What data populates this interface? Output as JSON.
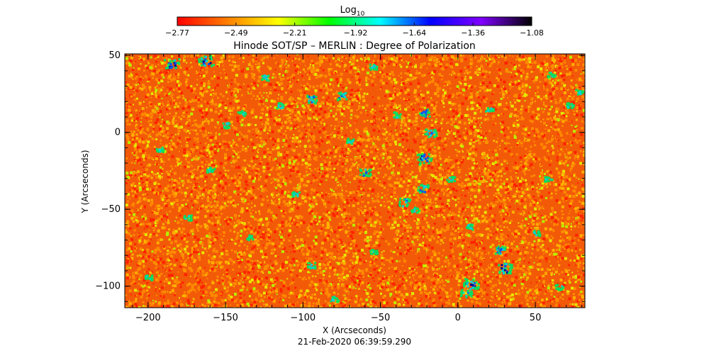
{
  "chart_data": {
    "type": "heatmap",
    "title": "Hinode SOT/SP – MERLIN : Degree of Polarization",
    "xlabel": "X (Arcseconds)",
    "ylabel": "Y (Arcseconds)",
    "timestamp": "21-Feb-2020 06:39:59.290",
    "xlim": [
      -215,
      82
    ],
    "ylim": [
      -114,
      51
    ],
    "x_ticks": [
      -200,
      -150,
      -100,
      -50,
      0,
      50
    ],
    "x_tick_labels": [
      "−200",
      "−150",
      "−100",
      "−50",
      "0",
      "50"
    ],
    "y_ticks": [
      50,
      0,
      -50,
      -100
    ],
    "y_tick_labels": [
      "50",
      "0",
      "−50",
      "−100"
    ],
    "colorbar": {
      "label_base": "Log",
      "label_sub": "10",
      "range": [
        -2.77,
        -1.08
      ],
      "ticks": [
        -2.77,
        -2.49,
        -2.21,
        -1.92,
        -1.64,
        -1.36,
        -1.08
      ],
      "tick_labels": [
        "−2.77",
        "−2.49",
        "−2.21",
        "−1.92",
        "−1.64",
        "−1.36",
        "−1.08"
      ],
      "colormap": [
        "#ff0000",
        "#ff8000",
        "#ffff00",
        "#00ff00",
        "#00ffff",
        "#0000ff",
        "#8000ff",
        "#000000"
      ]
    },
    "field": {
      "typical_value": -2.62,
      "background_color": "#f25a08",
      "speckle_colors": [
        "#ff2200",
        "#ff8a00",
        "#ffb000",
        "#e8e800",
        "#b8f000"
      ],
      "speckle_weights": [
        0.22,
        0.4,
        0.23,
        0.1,
        0.05
      ],
      "strong_colors": [
        "#00e060",
        "#00d0e0",
        "#0050ff",
        "#000090"
      ],
      "strong_patches": [
        {
          "x": -185,
          "y": 45,
          "level": 3
        },
        {
          "x": -163,
          "y": 47,
          "level": 3
        },
        {
          "x": -95,
          "y": 22,
          "level": 2
        },
        {
          "x": -75,
          "y": 24,
          "level": 2
        },
        {
          "x": -40,
          "y": 12,
          "level": 1
        },
        {
          "x": -22,
          "y": 13,
          "level": 2
        },
        {
          "x": -18,
          "y": 0,
          "level": 2
        },
        {
          "x": -22,
          "y": -17,
          "level": 3
        },
        {
          "x": -160,
          "y": -24,
          "level": 1
        },
        {
          "x": -193,
          "y": -11,
          "level": 1
        },
        {
          "x": -60,
          "y": -26,
          "level": 2
        },
        {
          "x": -35,
          "y": -45,
          "level": 2
        },
        {
          "x": -23,
          "y": -36,
          "level": 2
        },
        {
          "x": -28,
          "y": -50,
          "level": 1
        },
        {
          "x": 7,
          "y": -61,
          "level": 1
        },
        {
          "x": 27,
          "y": -76,
          "level": 2
        },
        {
          "x": 30,
          "y": -88,
          "level": 3
        },
        {
          "x": 8,
          "y": -98,
          "level": 3
        },
        {
          "x": 5,
          "y": -104,
          "level": 2
        },
        {
          "x": -95,
          "y": -86,
          "level": 1
        },
        {
          "x": -55,
          "y": -77,
          "level": 1
        },
        {
          "x": -135,
          "y": -68,
          "level": 1
        },
        {
          "x": -200,
          "y": -94,
          "level": 1
        },
        {
          "x": 50,
          "y": -65,
          "level": 1
        },
        {
          "x": 58,
          "y": -30,
          "level": 1
        },
        {
          "x": 60,
          "y": 38,
          "level": 1
        },
        {
          "x": 72,
          "y": 18,
          "level": 1
        },
        {
          "x": 78,
          "y": 27,
          "level": 1
        },
        {
          "x": -115,
          "y": 18,
          "level": 1
        },
        {
          "x": -140,
          "y": 13,
          "level": 1
        },
        {
          "x": -125,
          "y": 36,
          "level": 1
        },
        {
          "x": -55,
          "y": 43,
          "level": 1
        },
        {
          "x": -70,
          "y": -5,
          "level": 1
        },
        {
          "x": -105,
          "y": -40,
          "level": 1
        },
        {
          "x": -175,
          "y": -55,
          "level": 1
        },
        {
          "x": 20,
          "y": 15,
          "level": 1
        },
        {
          "x": -5,
          "y": -30,
          "level": 1
        },
        {
          "x": 65,
          "y": -100,
          "level": 1
        },
        {
          "x": -150,
          "y": 5,
          "level": 1
        },
        {
          "x": -80,
          "y": -108,
          "level": 1
        }
      ]
    }
  }
}
